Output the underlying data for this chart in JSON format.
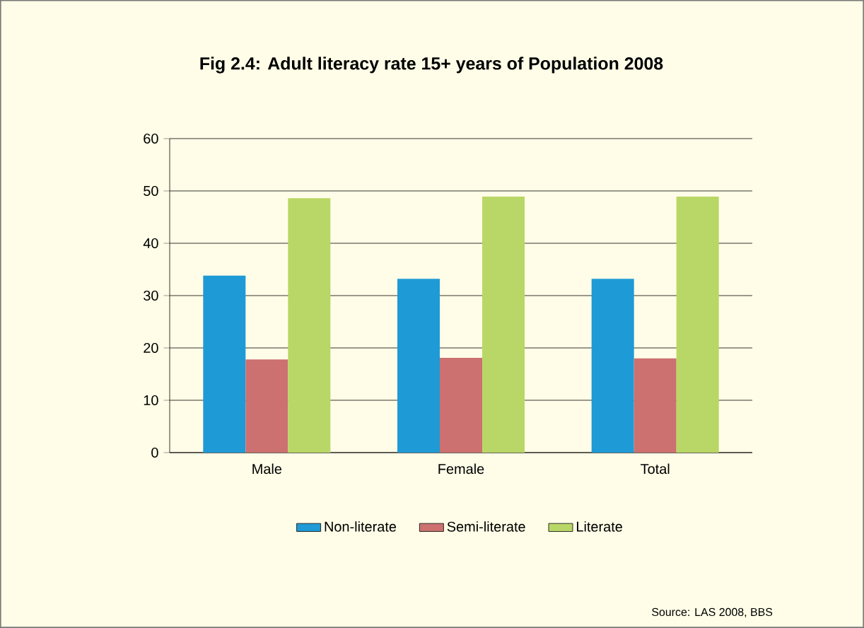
{
  "chart_data": {
    "type": "bar",
    "title": "Fig 2.4: Adult literacy rate 15+ years of Population 2008",
    "categories": [
      "Male",
      "Female",
      "Total"
    ],
    "series": [
      {
        "name": "Non-literate",
        "color": "#1e9ad6",
        "values": [
          33.8,
          33.2,
          33.2
        ]
      },
      {
        "name": "Semi-literate",
        "color": "#cc7070",
        "values": [
          17.8,
          18.1,
          18.0
        ]
      },
      {
        "name": "Literate",
        "color": "#b9d766",
        "values": [
          48.6,
          48.9,
          48.9
        ]
      }
    ],
    "ylim": [
      0,
      60
    ],
    "yticks": [
      0,
      10,
      20,
      30,
      40,
      50,
      60
    ],
    "grid": "y",
    "legend": "bottom",
    "annotations": [
      "Source: LAS 2008, BBS"
    ]
  }
}
